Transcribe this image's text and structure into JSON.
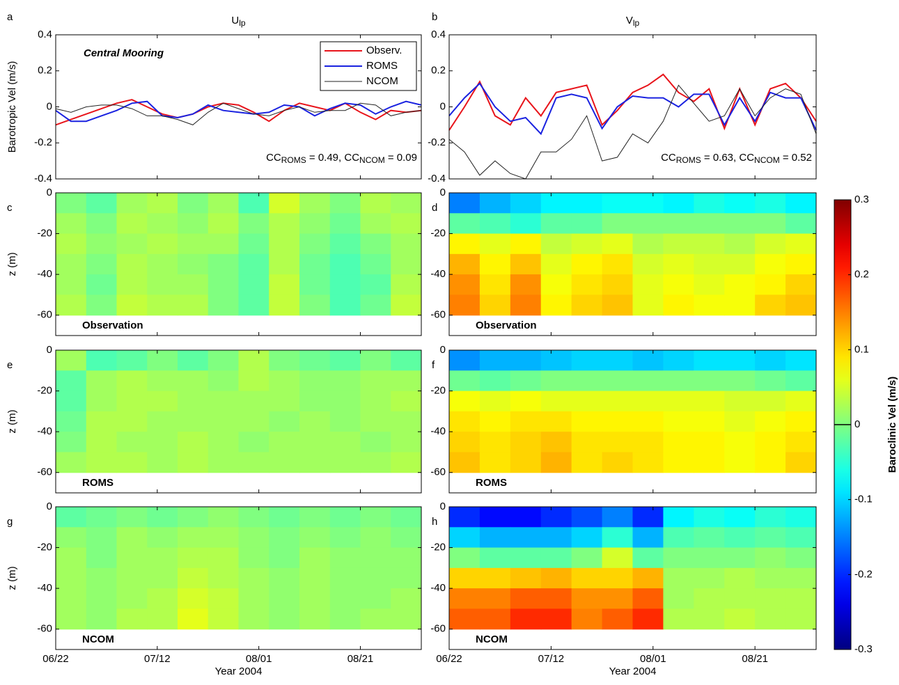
{
  "chart_data": [
    {
      "type": "line",
      "panel_label": "a",
      "title": "U",
      "title_sub": "lp",
      "ylabel": "Barotropic Vel (m/s)",
      "annotation_title": "Central Mooring",
      "annotation": [
        "CC",
        "ROMS",
        " = 0.49, CC",
        "NCOM",
        " = 0.09"
      ],
      "x": [
        "06/22",
        "06/25",
        "06/28",
        "07/01",
        "07/04",
        "07/07",
        "07/10",
        "07/13",
        "07/16",
        "07/19",
        "07/22",
        "07/25",
        "07/28",
        "07/31",
        "08/03",
        "08/06",
        "08/09",
        "08/12",
        "08/15",
        "08/18",
        "08/21",
        "08/24",
        "08/27",
        "08/30",
        "09/02"
      ],
      "series": [
        {
          "name": "Observ.",
          "color": "#e8141b",
          "values": [
            -0.1,
            -0.07,
            -0.04,
            -0.01,
            0.02,
            0.04,
            0.0,
            -0.04,
            -0.06,
            -0.04,
            0.0,
            0.02,
            0.01,
            -0.03,
            -0.08,
            -0.02,
            0.02,
            0.0,
            -0.02,
            0.02,
            -0.03,
            -0.07,
            -0.02,
            -0.03,
            -0.02
          ]
        },
        {
          "name": "ROMS",
          "color": "#1a22e0",
          "values": [
            -0.02,
            -0.08,
            -0.08,
            -0.05,
            -0.02,
            0.02,
            0.03,
            -0.05,
            -0.06,
            -0.04,
            0.01,
            -0.02,
            -0.03,
            -0.04,
            -0.03,
            0.01,
            0.0,
            -0.05,
            -0.01,
            0.02,
            0.01,
            -0.04,
            0.0,
            0.03,
            0.01
          ]
        },
        {
          "name": "NCOM",
          "color": "#222222",
          "values": [
            -0.01,
            -0.03,
            0.0,
            0.01,
            0.01,
            -0.01,
            -0.05,
            -0.05,
            -0.07,
            -0.1,
            -0.03,
            0.02,
            -0.01,
            -0.04,
            -0.05,
            -0.02,
            0.0,
            -0.03,
            -0.02,
            -0.02,
            0.02,
            0.01,
            -0.05,
            -0.03,
            -0.02
          ]
        }
      ],
      "xlim": [
        "06/22",
        "09/02"
      ],
      "xticks": [
        "06/22",
        "07/12",
        "08/01",
        "08/21"
      ],
      "xtick_labels": false,
      "ylim": [
        -0.4,
        0.4
      ],
      "yticks": [
        0.4,
        0.2,
        0,
        -0.2,
        -0.4
      ],
      "legend": "upper right"
    },
    {
      "type": "line",
      "panel_label": "b",
      "title": "V",
      "title_sub": "lp",
      "annotation": [
        "CC",
        "ROMS",
        " = 0.63, CC",
        "NCOM",
        " = 0.52"
      ],
      "x": [
        "06/22",
        "06/25",
        "06/28",
        "07/01",
        "07/04",
        "07/07",
        "07/10",
        "07/13",
        "07/16",
        "07/19",
        "07/22",
        "07/25",
        "07/28",
        "07/31",
        "08/03",
        "08/06",
        "08/09",
        "08/12",
        "08/15",
        "08/18",
        "08/21",
        "08/24",
        "08/27",
        "08/30",
        "09/02"
      ],
      "series": [
        {
          "name": "Observ.",
          "color": "#e8141b",
          "values": [
            -0.13,
            0.0,
            0.14,
            -0.05,
            -0.1,
            0.05,
            -0.05,
            0.08,
            0.1,
            0.12,
            -0.1,
            -0.02,
            0.08,
            0.12,
            0.18,
            0.08,
            0.03,
            0.1,
            -0.12,
            0.1,
            -0.1,
            0.1,
            0.13,
            0.05,
            -0.08
          ]
        },
        {
          "name": "ROMS",
          "color": "#1a22e0",
          "values": [
            -0.05,
            0.05,
            0.13,
            0.0,
            -0.08,
            -0.06,
            -0.15,
            0.05,
            0.07,
            0.05,
            -0.12,
            0.0,
            0.06,
            0.05,
            0.05,
            0.0,
            0.07,
            0.07,
            -0.1,
            0.05,
            -0.08,
            0.08,
            0.05,
            0.05,
            -0.13
          ]
        },
        {
          "name": "NCOM",
          "color": "#222222",
          "values": [
            -0.18,
            -0.25,
            -0.38,
            -0.3,
            -0.37,
            -0.4,
            -0.25,
            -0.25,
            -0.18,
            -0.05,
            -0.3,
            -0.28,
            -0.15,
            -0.2,
            -0.08,
            0.12,
            0.02,
            -0.08,
            -0.05,
            0.1,
            -0.05,
            0.05,
            0.1,
            0.07,
            -0.15
          ]
        }
      ],
      "xlim": [
        "06/22",
        "09/02"
      ],
      "xticks": [
        "06/22",
        "07/12",
        "08/01",
        "08/21"
      ],
      "xtick_labels": false,
      "ylim": [
        -0.4,
        0.4
      ],
      "yticks": [
        0.4,
        0.2,
        0,
        -0.2,
        -0.4
      ]
    },
    {
      "type": "heatmap",
      "panel_label": "c",
      "label": "Observation",
      "ylabel": "z (m)",
      "x": [
        "06/25",
        "07/01",
        "07/07",
        "07/13",
        "07/19",
        "07/25",
        "07/31",
        "08/06",
        "08/12",
        "08/18",
        "08/24",
        "08/30"
      ],
      "y": [
        -5,
        -15,
        -25,
        -35,
        -45,
        -55
      ],
      "z": [
        [
          0.0,
          -0.02,
          0.02,
          0.03,
          0.0,
          0.02,
          -0.03,
          0.05,
          0.02,
          0.0,
          0.03,
          0.02
        ],
        [
          0.02,
          0.0,
          0.03,
          0.02,
          0.01,
          0.03,
          0.0,
          0.03,
          0.01,
          -0.01,
          0.02,
          0.03
        ],
        [
          0.03,
          0.01,
          0.02,
          0.03,
          0.02,
          0.02,
          -0.01,
          0.03,
          0.0,
          -0.02,
          0.0,
          0.02
        ],
        [
          0.02,
          0.0,
          0.03,
          0.02,
          0.01,
          0.0,
          -0.02,
          0.03,
          -0.01,
          -0.03,
          -0.01,
          0.02
        ],
        [
          0.02,
          -0.01,
          0.03,
          0.02,
          0.02,
          0.0,
          -0.02,
          0.04,
          -0.01,
          -0.03,
          -0.02,
          0.03
        ],
        [
          0.03,
          0.0,
          0.04,
          0.03,
          0.03,
          0.0,
          -0.02,
          0.04,
          0.0,
          -0.03,
          -0.01,
          0.04
        ]
      ],
      "xlim": [
        "06/22",
        "09/02"
      ],
      "xticks": [
        "06/22",
        "07/12",
        "08/01",
        "08/21"
      ],
      "xtick_labels": false,
      "ylim": [
        -70,
        0
      ],
      "yticks": [
        0,
        -20,
        -40,
        -60
      ]
    },
    {
      "type": "heatmap",
      "panel_label": "d",
      "label": "Observation",
      "x": [
        "06/25",
        "07/01",
        "07/07",
        "07/13",
        "07/19",
        "07/25",
        "07/31",
        "08/06",
        "08/12",
        "08/18",
        "08/24",
        "08/30"
      ],
      "y": [
        -5,
        -15,
        -25,
        -35,
        -45,
        -55
      ],
      "z": [
        [
          -0.15,
          -0.12,
          -0.1,
          -0.08,
          -0.08,
          -0.07,
          -0.07,
          -0.08,
          -0.06,
          -0.07,
          -0.06,
          -0.08
        ],
        [
          -0.02,
          -0.03,
          -0.05,
          -0.02,
          -0.02,
          0.0,
          0.0,
          0.0,
          0.0,
          0.0,
          0.0,
          -0.02
        ],
        [
          0.08,
          0.06,
          0.08,
          0.04,
          0.05,
          0.06,
          0.03,
          0.04,
          0.04,
          0.03,
          0.05,
          0.06
        ],
        [
          0.12,
          0.08,
          0.11,
          0.06,
          0.08,
          0.09,
          0.05,
          0.06,
          0.05,
          0.05,
          0.07,
          0.08
        ],
        [
          0.14,
          0.09,
          0.14,
          0.07,
          0.09,
          0.1,
          0.06,
          0.07,
          0.06,
          0.07,
          0.08,
          0.1
        ],
        [
          0.15,
          0.1,
          0.15,
          0.08,
          0.1,
          0.11,
          0.06,
          0.08,
          0.07,
          0.07,
          0.1,
          0.11
        ]
      ],
      "xlim": [
        "06/22",
        "09/02"
      ],
      "xticks": [
        "06/22",
        "07/12",
        "08/01",
        "08/21"
      ],
      "xtick_labels": false,
      "ylim": [
        -70,
        0
      ],
      "yticks": [
        0,
        -20,
        -40,
        -60
      ]
    },
    {
      "type": "heatmap",
      "panel_label": "e",
      "label": "ROMS",
      "ylabel": "z (m)",
      "x": [
        "06/25",
        "07/01",
        "07/07",
        "07/13",
        "07/19",
        "07/25",
        "07/31",
        "08/06",
        "08/12",
        "08/18",
        "08/24",
        "08/30"
      ],
      "y": [
        -5,
        -15,
        -25,
        -35,
        -45,
        -55
      ],
      "z": [
        [
          0.02,
          -0.03,
          -0.02,
          0.0,
          -0.02,
          0.0,
          0.03,
          0.0,
          -0.01,
          -0.02,
          0.0,
          -0.02
        ],
        [
          -0.02,
          0.02,
          0.03,
          0.02,
          0.02,
          0.01,
          0.03,
          0.02,
          0.01,
          0.01,
          0.02,
          0.02
        ],
        [
          -0.02,
          0.02,
          0.03,
          0.03,
          0.02,
          0.02,
          0.02,
          0.02,
          0.01,
          0.01,
          0.02,
          0.03
        ],
        [
          -0.01,
          0.03,
          0.03,
          0.02,
          0.02,
          0.02,
          0.02,
          0.01,
          0.02,
          0.01,
          0.02,
          0.02
        ],
        [
          0.0,
          0.03,
          0.02,
          0.02,
          0.03,
          0.02,
          0.01,
          0.02,
          0.02,
          0.02,
          0.01,
          0.02
        ],
        [
          0.02,
          0.03,
          0.03,
          0.02,
          0.03,
          0.02,
          0.02,
          0.02,
          0.02,
          0.02,
          0.02,
          0.03
        ]
      ],
      "xlim": [
        "06/22",
        "09/02"
      ],
      "xticks": [
        "06/22",
        "07/12",
        "08/01",
        "08/21"
      ],
      "xtick_labels": false,
      "ylim": [
        -70,
        0
      ],
      "yticks": [
        0,
        -20,
        -40,
        -60
      ]
    },
    {
      "type": "heatmap",
      "panel_label": "f",
      "label": "ROMS",
      "x": [
        "06/25",
        "07/01",
        "07/07",
        "07/13",
        "07/19",
        "07/25",
        "07/31",
        "08/06",
        "08/12",
        "08/18",
        "08/24",
        "08/30"
      ],
      "y": [
        -5,
        -15,
        -25,
        -35,
        -45,
        -55
      ],
      "z": [
        [
          -0.14,
          -0.12,
          -0.12,
          -0.11,
          -0.1,
          -0.1,
          -0.11,
          -0.1,
          -0.09,
          -0.09,
          -0.1,
          -0.09
        ],
        [
          -0.01,
          -0.02,
          -0.01,
          0.0,
          0.0,
          0.0,
          0.0,
          0.0,
          0.0,
          0.0,
          -0.01,
          -0.02
        ],
        [
          0.07,
          0.06,
          0.07,
          0.06,
          0.06,
          0.06,
          0.06,
          0.06,
          0.06,
          0.05,
          0.05,
          0.06
        ],
        [
          0.09,
          0.08,
          0.09,
          0.09,
          0.08,
          0.08,
          0.08,
          0.07,
          0.07,
          0.06,
          0.07,
          0.08
        ],
        [
          0.1,
          0.09,
          0.1,
          0.11,
          0.09,
          0.09,
          0.09,
          0.08,
          0.08,
          0.07,
          0.08,
          0.09
        ],
        [
          0.11,
          0.09,
          0.1,
          0.12,
          0.09,
          0.1,
          0.09,
          0.08,
          0.08,
          0.07,
          0.08,
          0.1
        ]
      ],
      "xlim": [
        "06/22",
        "09/02"
      ],
      "xticks": [
        "06/22",
        "07/12",
        "08/01",
        "08/21"
      ],
      "xtick_labels": false,
      "ylim": [
        -70,
        0
      ],
      "yticks": [
        0,
        -20,
        -40,
        -60
      ]
    },
    {
      "type": "heatmap",
      "panel_label": "g",
      "label": "NCOM",
      "ylabel": "z (m)",
      "xlabel": "Year 2004",
      "x": [
        "06/25",
        "07/01",
        "07/07",
        "07/13",
        "07/19",
        "07/25",
        "07/31",
        "08/06",
        "08/12",
        "08/18",
        "08/24",
        "08/30"
      ],
      "y": [
        -5,
        -15,
        -25,
        -35,
        -45,
        -55
      ],
      "z": [
        [
          -0.02,
          -0.01,
          0.0,
          -0.01,
          0.0,
          0.01,
          0.0,
          -0.01,
          0.0,
          -0.01,
          0.0,
          -0.01
        ],
        [
          0.01,
          0.0,
          0.02,
          0.01,
          0.02,
          0.02,
          0.01,
          0.0,
          0.01,
          0.0,
          0.01,
          0.0
        ],
        [
          0.02,
          0.0,
          0.02,
          0.02,
          0.03,
          0.03,
          0.01,
          0.0,
          0.02,
          0.01,
          0.01,
          0.01
        ],
        [
          0.02,
          0.01,
          0.02,
          0.02,
          0.04,
          0.03,
          0.02,
          0.01,
          0.02,
          0.01,
          0.01,
          0.01
        ],
        [
          0.02,
          0.01,
          0.02,
          0.03,
          0.05,
          0.04,
          0.02,
          0.01,
          0.02,
          0.01,
          0.01,
          0.02
        ],
        [
          0.02,
          0.01,
          0.03,
          0.03,
          0.06,
          0.04,
          0.02,
          0.01,
          0.02,
          0.01,
          0.02,
          0.02
        ]
      ],
      "xlim": [
        "06/22",
        "09/02"
      ],
      "xticks": [
        "06/22",
        "07/12",
        "08/01",
        "08/21"
      ],
      "xtick_labels": true,
      "ylim": [
        -70,
        0
      ],
      "yticks": [
        0,
        -20,
        -40,
        -60
      ]
    },
    {
      "type": "heatmap",
      "panel_label": "h",
      "label": "NCOM",
      "xlabel": "Year 2004",
      "x": [
        "06/25",
        "07/01",
        "07/07",
        "07/13",
        "07/19",
        "07/25",
        "07/31",
        "08/06",
        "08/12",
        "08/18",
        "08/24",
        "08/30"
      ],
      "y": [
        -5,
        -15,
        -25,
        -35,
        -45,
        -55
      ],
      "z": [
        [
          -0.2,
          -0.22,
          -0.22,
          -0.2,
          -0.18,
          -0.15,
          -0.2,
          -0.08,
          -0.06,
          -0.07,
          -0.05,
          -0.06
        ],
        [
          -0.1,
          -0.12,
          -0.12,
          -0.12,
          -0.1,
          -0.05,
          -0.12,
          -0.03,
          -0.02,
          -0.03,
          -0.02,
          -0.03
        ],
        [
          0.0,
          -0.02,
          -0.02,
          -0.02,
          0.0,
          0.05,
          -0.02,
          0.0,
          0.0,
          0.0,
          0.01,
          0.0
        ],
        [
          0.1,
          0.1,
          0.11,
          0.12,
          0.1,
          0.1,
          0.12,
          0.02,
          0.02,
          0.03,
          0.02,
          0.02
        ],
        [
          0.15,
          0.15,
          0.17,
          0.17,
          0.14,
          0.14,
          0.17,
          0.02,
          0.03,
          0.03,
          0.03,
          0.03
        ],
        [
          0.17,
          0.17,
          0.2,
          0.2,
          0.15,
          0.17,
          0.2,
          0.03,
          0.03,
          0.04,
          0.03,
          0.03
        ]
      ],
      "xlim": [
        "06/22",
        "09/02"
      ],
      "xticks": [
        "06/22",
        "07/12",
        "08/01",
        "08/21"
      ],
      "xtick_labels": true,
      "ylim": [
        -70,
        0
      ],
      "yticks": [
        0,
        -20,
        -40,
        -60
      ]
    },
    {
      "type": "colorbar",
      "ylabel": "Baroclinic Vel (m/s)",
      "ylim": [
        -0.3,
        0.3
      ],
      "yticks": [
        0.3,
        0.2,
        0.1,
        0,
        -0.1,
        -0.2,
        -0.3
      ],
      "colormap": "jet"
    }
  ]
}
